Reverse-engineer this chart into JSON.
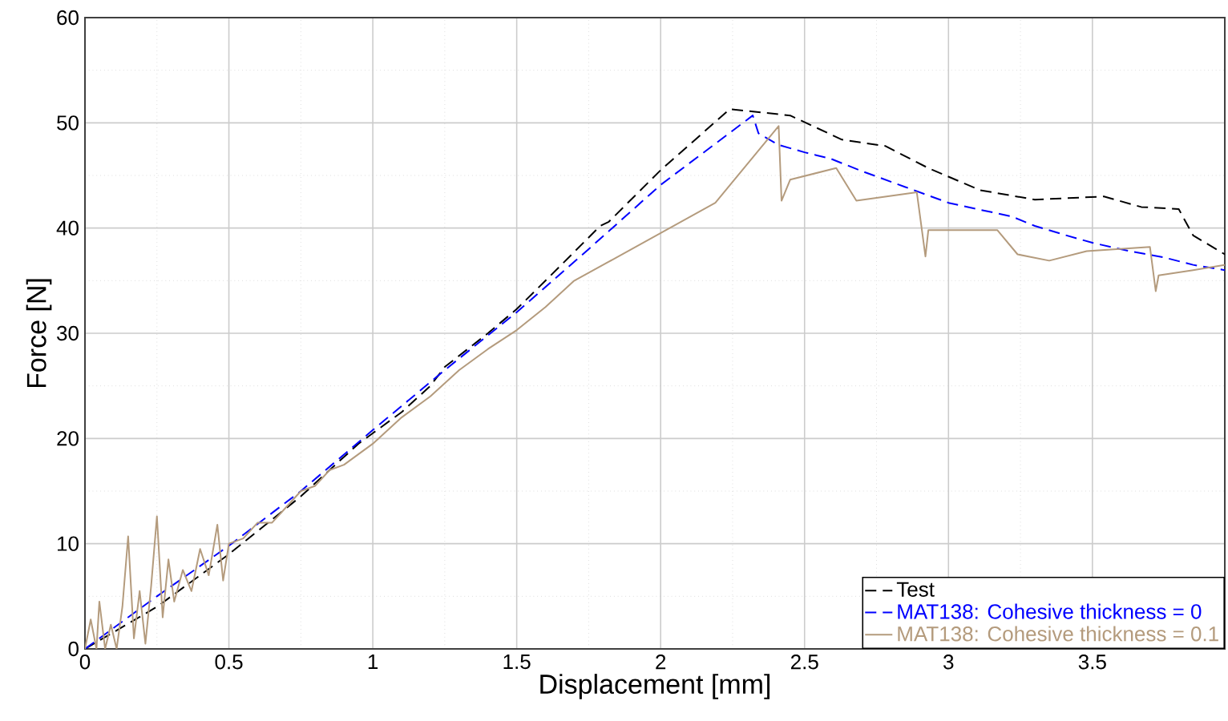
{
  "chart_data": {
    "type": "line",
    "xlabel": "Displacement [mm]",
    "ylabel": "Force [N]",
    "xlim": [
      0,
      3.96
    ],
    "ylim": [
      0,
      60
    ],
    "xticks": [
      0,
      0.5,
      1,
      1.5,
      2,
      2.5,
      3,
      3.5
    ],
    "yticks": [
      0,
      10,
      20,
      30,
      40,
      50,
      60
    ],
    "grid": true,
    "legend": "bottom right",
    "marker": "none",
    "series": [
      {
        "name": "Test",
        "color": "#000000",
        "line_style": "dashed",
        "x": [
          0,
          0.25,
          0.5,
          0.75,
          0.95,
          1.0,
          1.1,
          1.2,
          1.25,
          1.4,
          1.5,
          1.6,
          1.79,
          1.82,
          2.0,
          2.24,
          2.45,
          2.63,
          2.78,
          2.93,
          3.11,
          3.3,
          3.54,
          3.67,
          3.8,
          3.85,
          3.96
        ],
        "values": [
          0,
          4,
          9,
          14.5,
          19.5,
          20.5,
          22.5,
          25,
          26.8,
          30,
          32.3,
          35,
          40.2,
          40.6,
          45.5,
          51.3,
          50.7,
          48.4,
          47.8,
          45.7,
          43.6,
          42.7,
          43,
          42,
          41.8,
          39.3,
          37.5
        ]
      },
      {
        "name": "MAT138: Cohesive thickness = 0",
        "color": "#0000ff",
        "line_style": "dashed",
        "x": [
          0,
          0.25,
          0.5,
          0.75,
          1.0,
          1.25,
          1.5,
          1.75,
          2.0,
          2.32,
          2.34,
          2.41,
          2.5,
          2.59,
          2.7,
          2.85,
          3.0,
          3.1,
          3.22,
          3.3,
          3.41,
          3.5,
          3.63,
          3.75,
          3.85,
          3.96
        ],
        "values": [
          0,
          5,
          9.8,
          15,
          20.8,
          26.5,
          32,
          38,
          44.1,
          50.7,
          49,
          47.9,
          47.2,
          46.6,
          45.4,
          43.9,
          42.4,
          41.8,
          41.1,
          40.2,
          39.3,
          38.6,
          37.8,
          37.2,
          36.5,
          36
        ]
      },
      {
        "name": "MAT138: Cohesive thickness = 0.1",
        "color": "#b49b7d",
        "line_style": "solid",
        "x": [
          0,
          0.02,
          0.04,
          0.05,
          0.07,
          0.09,
          0.11,
          0.13,
          0.15,
          0.17,
          0.19,
          0.21,
          0.23,
          0.25,
          0.27,
          0.29,
          0.31,
          0.34,
          0.37,
          0.4,
          0.43,
          0.46,
          0.48,
          0.5,
          0.55,
          0.6,
          0.65,
          0.7,
          0.75,
          0.8,
          0.85,
          0.9,
          1.0,
          1.1,
          1.2,
          1.3,
          1.4,
          1.5,
          1.6,
          1.7,
          1.82,
          2.19,
          2.41,
          2.42,
          2.45,
          2.61,
          2.68,
          2.89,
          2.92,
          2.93,
          3.17,
          3.24,
          3.35,
          3.48,
          3.7,
          3.72,
          3.73,
          3.85,
          3.96
        ],
        "values": [
          0,
          2.8,
          0,
          4.5,
          0,
          2.3,
          0,
          4,
          10.7,
          1,
          5.5,
          0.5,
          6,
          12.6,
          3,
          8.5,
          4.5,
          7.5,
          5.5,
          9.5,
          7,
          11.8,
          6.5,
          10,
          10.5,
          12,
          12,
          13.5,
          15,
          15.5,
          17,
          17.5,
          19.5,
          22,
          24,
          26.5,
          28.5,
          30.3,
          32.5,
          35,
          36.8,
          42.4,
          49.7,
          42.6,
          44.6,
          45.7,
          42.6,
          43.4,
          37.3,
          39.8,
          39.8,
          37.5,
          36.9,
          37.8,
          38.2,
          34,
          35.5,
          36,
          36.5
        ]
      }
    ]
  }
}
